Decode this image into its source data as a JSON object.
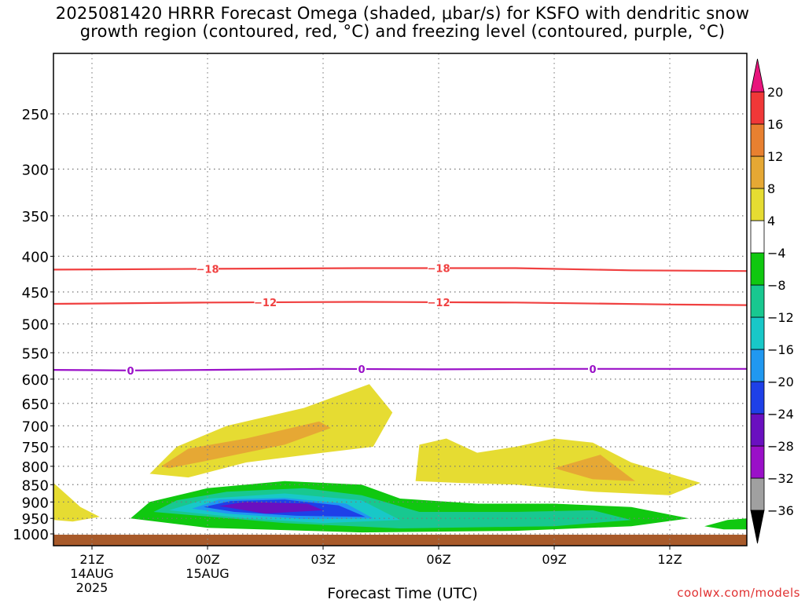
{
  "title": {
    "line1": "2025081420 HRRR Forecast Omega (shaded, μbar/s) for KSFO with dendritic snow",
    "line2": "growth region (contoured, red, °C) and freezing level (contoured, purple, °C)"
  },
  "credit": "coolwx.com/models",
  "chart_data": {
    "type": "heatmap",
    "xlabel": "Forecast Time (UTC)",
    "y_axis": {
      "ticks": [
        250,
        300,
        350,
        400,
        450,
        500,
        550,
        600,
        650,
        700,
        750,
        800,
        850,
        900,
        950,
        1000
      ],
      "range": [
        1000,
        200
      ],
      "grid": true
    },
    "x_axis": {
      "ticks": [
        {
          "hour": 21,
          "label": "21Z",
          "date": "14AUG",
          "year": "2025"
        },
        {
          "hour": 24,
          "label": "00Z",
          "date": "15AUG",
          "year": ""
        },
        {
          "hour": 27,
          "label": "03Z",
          "date": "",
          "year": ""
        },
        {
          "hour": 30,
          "label": "06Z",
          "date": "",
          "year": ""
        },
        {
          "hour": 33,
          "label": "09Z",
          "date": "",
          "year": ""
        },
        {
          "hour": 36,
          "label": "12Z",
          "date": "",
          "year": ""
        }
      ],
      "range": [
        20,
        38
      ],
      "grid": true
    },
    "colorbar": {
      "levels": [
        -36,
        -32,
        -28,
        -24,
        -20,
        -16,
        -12,
        -8,
        -4,
        4,
        8,
        12,
        16,
        20
      ],
      "labels": [
        "20",
        "16",
        "12",
        "8",
        "4",
        "−4",
        "−8",
        "−12",
        "−16",
        "−20",
        "−24",
        "−28",
        "−32",
        "−36"
      ],
      "colors": [
        "#000000",
        "#a0a0a0",
        "#9a10c8",
        "#6a10c0",
        "#1e40e8",
        "#2098f0",
        "#18c8c8",
        "#18c890",
        "#10c810",
        "#ffffff",
        "#e6dc32",
        "#e6a834",
        "#e88030",
        "#f03838",
        "#e8147c"
      ]
    },
    "contours": {
      "dendritic": [
        {
          "label": "−18",
          "color": "#f04040",
          "points": [
            [
              20,
              418
            ],
            [
              24,
              417
            ],
            [
              28,
              416
            ],
            [
              32,
              416
            ],
            [
              35,
              419
            ],
            [
              38,
              420
            ]
          ]
        },
        {
          "label": "−12",
          "color": "#f04040",
          "points": [
            [
              20,
              468
            ],
            [
              24,
              466
            ],
            [
              28,
              465
            ],
            [
              32,
              466
            ],
            [
              36,
              469
            ],
            [
              38,
              470
            ]
          ]
        }
      ],
      "freezing_level": [
        {
          "label": "0",
          "color": "#9a10c8",
          "points": [
            [
              20,
              582
            ],
            [
              22,
              583
            ],
            [
              24,
              582
            ],
            [
              27,
              580
            ],
            [
              30,
              581
            ],
            [
              33,
              580
            ],
            [
              36,
              580
            ],
            [
              38,
              580
            ]
          ]
        }
      ]
    },
    "omega_regions": [
      {
        "value_range": [
          4,
          8
        ],
        "points": [
          [
            22.5,
            820
          ],
          [
            23.2,
            750
          ],
          [
            24.5,
            700
          ],
          [
            26.5,
            660
          ],
          [
            28.2,
            610
          ],
          [
            28.8,
            670
          ],
          [
            28.3,
            750
          ],
          [
            27,
            765
          ],
          [
            25,
            790
          ],
          [
            23.5,
            830
          ]
        ]
      },
      {
        "value_range": [
          8,
          12
        ],
        "points": [
          [
            22.8,
            800
          ],
          [
            23.5,
            755
          ],
          [
            25,
            730
          ],
          [
            26.9,
            690
          ],
          [
            27.2,
            705
          ],
          [
            26,
            745
          ],
          [
            24,
            785
          ],
          [
            23,
            805
          ]
        ]
      },
      {
        "value_range": [
          4,
          8
        ],
        "points": [
          [
            29.4,
            840
          ],
          [
            29.5,
            745
          ],
          [
            30.2,
            730
          ],
          [
            31,
            765
          ],
          [
            32,
            750
          ],
          [
            33,
            730
          ],
          [
            34,
            740
          ],
          [
            35,
            790
          ],
          [
            36.8,
            845
          ],
          [
            36,
            880
          ],
          [
            34,
            870
          ],
          [
            32,
            850
          ],
          [
            30.5,
            845
          ]
        ]
      },
      {
        "value_range": [
          8,
          12
        ],
        "points": [
          [
            33,
            805
          ],
          [
            34.2,
            770
          ],
          [
            35.1,
            840
          ],
          [
            34,
            835
          ]
        ]
      },
      {
        "value_range": [
          4,
          8
        ],
        "points": [
          [
            20,
            845
          ],
          [
            20.7,
            915
          ],
          [
            21.2,
            945
          ],
          [
            20.5,
            960
          ],
          [
            20,
            955
          ]
        ]
      },
      {
        "value_range": [
          -8,
          -4
        ],
        "points": [
          [
            22,
            950
          ],
          [
            22.5,
            900
          ],
          [
            24,
            860
          ],
          [
            26,
            840
          ],
          [
            28,
            850
          ],
          [
            29,
            890
          ],
          [
            31,
            905
          ],
          [
            33,
            905
          ],
          [
            35,
            915
          ],
          [
            36.5,
            950
          ],
          [
            35,
            975
          ],
          [
            32,
            990
          ],
          [
            28,
            995
          ],
          [
            24,
            980
          ]
        ]
      },
      {
        "value_range": [
          -12,
          -8
        ],
        "points": [
          [
            22.6,
            930
          ],
          [
            23.2,
            895
          ],
          [
            24.5,
            870
          ],
          [
            26.5,
            860
          ],
          [
            28,
            880
          ],
          [
            29.5,
            930
          ],
          [
            32,
            930
          ],
          [
            34,
            925
          ],
          [
            35,
            955
          ],
          [
            33,
            975
          ],
          [
            29,
            982
          ],
          [
            26,
            965
          ]
        ]
      },
      {
        "value_range": [
          -16,
          -12
        ],
        "points": [
          [
            23,
            925
          ],
          [
            24,
            890
          ],
          [
            26,
            875
          ],
          [
            28,
            895
          ],
          [
            29,
            955
          ],
          [
            27,
            965
          ],
          [
            25,
            950
          ]
        ]
      },
      {
        "value_range": [
          -20,
          -16
        ],
        "points": [
          [
            23.6,
            920
          ],
          [
            24.3,
            893
          ],
          [
            26,
            888
          ],
          [
            27.6,
            905
          ],
          [
            28.3,
            950
          ],
          [
            26.5,
            952
          ],
          [
            24.5,
            935
          ]
        ]
      },
      {
        "value_range": [
          -24,
          -20
        ],
        "points": [
          [
            23.9,
            915
          ],
          [
            24.6,
            897
          ],
          [
            26,
            893
          ],
          [
            27.4,
            910
          ],
          [
            28.1,
            945
          ],
          [
            26.3,
            942
          ],
          [
            24.7,
            930
          ]
        ]
      },
      {
        "value_range": [
          -28,
          -24
        ],
        "points": [
          [
            24.3,
            912
          ],
          [
            25,
            900
          ],
          [
            26.6,
            905
          ],
          [
            27,
            925
          ],
          [
            25.5,
            935
          ]
        ]
      },
      {
        "value_range": [
          -8,
          -4
        ],
        "points": [
          [
            36.9,
            975
          ],
          [
            37.5,
            955
          ],
          [
            38,
            950
          ],
          [
            38,
            985
          ],
          [
            37.4,
            985
          ]
        ]
      }
    ],
    "terrain_color": "#a85a2a"
  }
}
